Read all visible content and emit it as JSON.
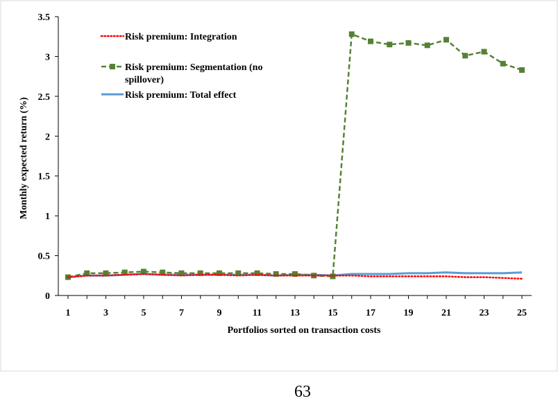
{
  "chart_data": {
    "type": "line",
    "title": "",
    "xlabel": "Portfolios sorted on transaction costs",
    "ylabel": "Monthly expected return (%)",
    "ylim": [
      0,
      3.5
    ],
    "yticks": [
      0,
      0.5,
      1,
      1.5,
      2,
      2.5,
      3,
      3.5
    ],
    "ytick_labels": [
      "0",
      "0.5",
      "1",
      "1.5",
      "2",
      "2.5",
      "3",
      "3.5"
    ],
    "x": [
      1,
      2,
      3,
      4,
      5,
      6,
      7,
      8,
      9,
      10,
      11,
      12,
      13,
      14,
      15,
      16,
      17,
      18,
      19,
      20,
      21,
      22,
      23,
      24,
      25
    ],
    "xtick_labels": [
      "1",
      "3",
      "5",
      "7",
      "9",
      "11",
      "13",
      "15",
      "17",
      "19",
      "21",
      "23",
      "25"
    ],
    "grid": false,
    "legend_position": "top-left",
    "series": [
      {
        "name": "Risk premium: Integration",
        "legend_lines": [
          "Risk premium: Integration"
        ],
        "color": "#ff0000",
        "style": "dotted",
        "values": [
          0.23,
          0.25,
          0.25,
          0.26,
          0.27,
          0.26,
          0.25,
          0.26,
          0.26,
          0.25,
          0.26,
          0.25,
          0.25,
          0.25,
          0.25,
          0.25,
          0.24,
          0.24,
          0.24,
          0.24,
          0.24,
          0.23,
          0.23,
          0.22,
          0.21
        ]
      },
      {
        "name": "Risk premium: Segmentation (no spillover)",
        "legend_lines": [
          "Risk premium: Segmentation (no",
          "spillover)"
        ],
        "color": "#548235",
        "style": "dashed-square",
        "values": [
          0.23,
          0.28,
          0.28,
          0.29,
          0.3,
          0.29,
          0.28,
          0.28,
          0.28,
          0.28,
          0.28,
          0.27,
          0.27,
          0.25,
          0.24,
          3.28,
          3.19,
          3.15,
          3.17,
          3.14,
          3.21,
          3.01,
          3.06,
          2.91,
          2.83
        ]
      },
      {
        "name": "Risk premium: Total effect",
        "legend_lines": [
          "Risk premium: Total effect"
        ],
        "color": "#5b9bd5",
        "style": "solid",
        "values": [
          0.23,
          0.25,
          0.25,
          0.26,
          0.27,
          0.26,
          0.26,
          0.26,
          0.26,
          0.26,
          0.26,
          0.25,
          0.26,
          0.26,
          0.25,
          0.27,
          0.27,
          0.27,
          0.28,
          0.28,
          0.29,
          0.28,
          0.28,
          0.28,
          0.29
        ]
      }
    ]
  },
  "page_number": "63"
}
